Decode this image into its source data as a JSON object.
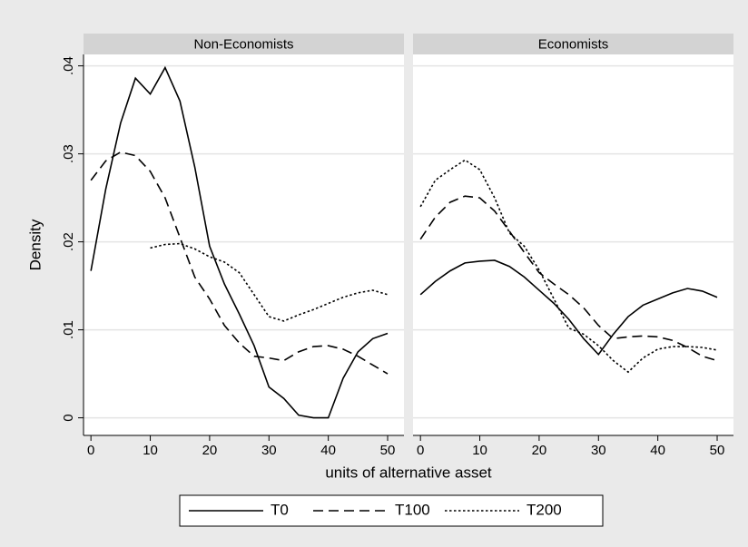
{
  "chart_data": [
    {
      "type": "line",
      "title": "Non-Economists",
      "y_label": "Density",
      "x_label": "units of alternative asset",
      "x": [
        0,
        2.5,
        5,
        7.5,
        10,
        12.5,
        15,
        17.5,
        20,
        22.5,
        25,
        27.5,
        30,
        32.5,
        35,
        37.5,
        40,
        42.5,
        45,
        47.5,
        50
      ],
      "xlim": [
        -1.25,
        52.75
      ],
      "xticks": [
        0,
        10,
        20,
        30,
        40,
        50
      ],
      "ylim": [
        -0.002,
        0.0413
      ],
      "yticks": [
        0,
        {
          "value": 0.01,
          "label": ".01"
        },
        {
          "value": 0.02,
          "label": ".02"
        },
        {
          "value": 0.03,
          "label": ".03"
        },
        {
          "value": 0.04,
          "label": ".04"
        }
      ],
      "grid": true,
      "legend": "bottom",
      "series": [
        {
          "name": "T0",
          "color": "#000000",
          "line_style": "solid",
          "values": [
            0.0167,
            0.026,
            0.0335,
            0.0386,
            0.0368,
            0.0398,
            0.036,
            0.0285,
            0.0195,
            0.0152,
            0.0118,
            0.0082,
            0.0035,
            0.0022,
            0.0003,
            0,
            0,
            0.0045,
            0.0075,
            0.009,
            0.0096
          ]
        },
        {
          "name": "T100",
          "color": "#000000",
          "line_style": "dashed",
          "values": [
            0.027,
            0.0292,
            0.0302,
            0.0298,
            0.028,
            0.025,
            0.0205,
            0.016,
            0.0135,
            0.0105,
            0.0085,
            0.007,
            0.0068,
            0.0065,
            0.0075,
            0.0081,
            0.0082,
            0.0078,
            0.007,
            0.006,
            0.005
          ]
        },
        {
          "name": "T200",
          "color": "#000000",
          "line_style": "dotted",
          "values": [
            null,
            null,
            null,
            null,
            0.0193,
            0.0197,
            0.0198,
            0.0192,
            0.0183,
            0.0177,
            0.0165,
            0.014,
            0.0115,
            0.011,
            0.0117,
            0.0123,
            0.013,
            0.0137,
            0.0142,
            0.0145,
            0.014
          ]
        }
      ]
    },
    {
      "type": "line",
      "title": "Economists",
      "x": [
        0,
        2.5,
        5,
        7.5,
        10,
        12.5,
        15,
        17.5,
        20,
        22.5,
        25,
        27.5,
        30,
        32.5,
        35,
        37.5,
        40,
        42.5,
        45,
        47.5,
        50
      ],
      "xlim": [
        -1.25,
        52.75
      ],
      "xticks": [
        0,
        10,
        20,
        30,
        40,
        50
      ],
      "ylim": [
        -0.002,
        0.0413
      ],
      "grid": true,
      "series": [
        {
          "name": "T0",
          "color": "#000000",
          "line_style": "solid",
          "values": [
            0.014,
            0.0155,
            0.0167,
            0.0176,
            0.0178,
            0.0179,
            0.0172,
            0.016,
            0.0145,
            0.013,
            0.0112,
            0.009,
            0.0072,
            0.0095,
            0.0115,
            0.0128,
            0.0135,
            0.0142,
            0.0147,
            0.0144,
            0.0137
          ]
        },
        {
          "name": "T100",
          "color": "#000000",
          "line_style": "dashed",
          "values": [
            0.0203,
            0.0228,
            0.0245,
            0.0252,
            0.025,
            0.0235,
            0.0212,
            0.0188,
            0.0165,
            0.0152,
            0.014,
            0.0125,
            0.0105,
            0.009,
            0.0092,
            0.0093,
            0.0092,
            0.0088,
            0.008,
            0.007,
            0.0065
          ]
        },
        {
          "name": "T200",
          "color": "#000000",
          "line_style": "dotted",
          "values": [
            0.024,
            0.027,
            0.0282,
            0.0293,
            0.0282,
            0.025,
            0.021,
            0.0195,
            0.0168,
            0.0135,
            0.0102,
            0.0095,
            0.0082,
            0.0065,
            0.0052,
            0.0068,
            0.0078,
            0.0081,
            0.0081,
            0.008,
            0.0077
          ]
        }
      ]
    }
  ]
}
